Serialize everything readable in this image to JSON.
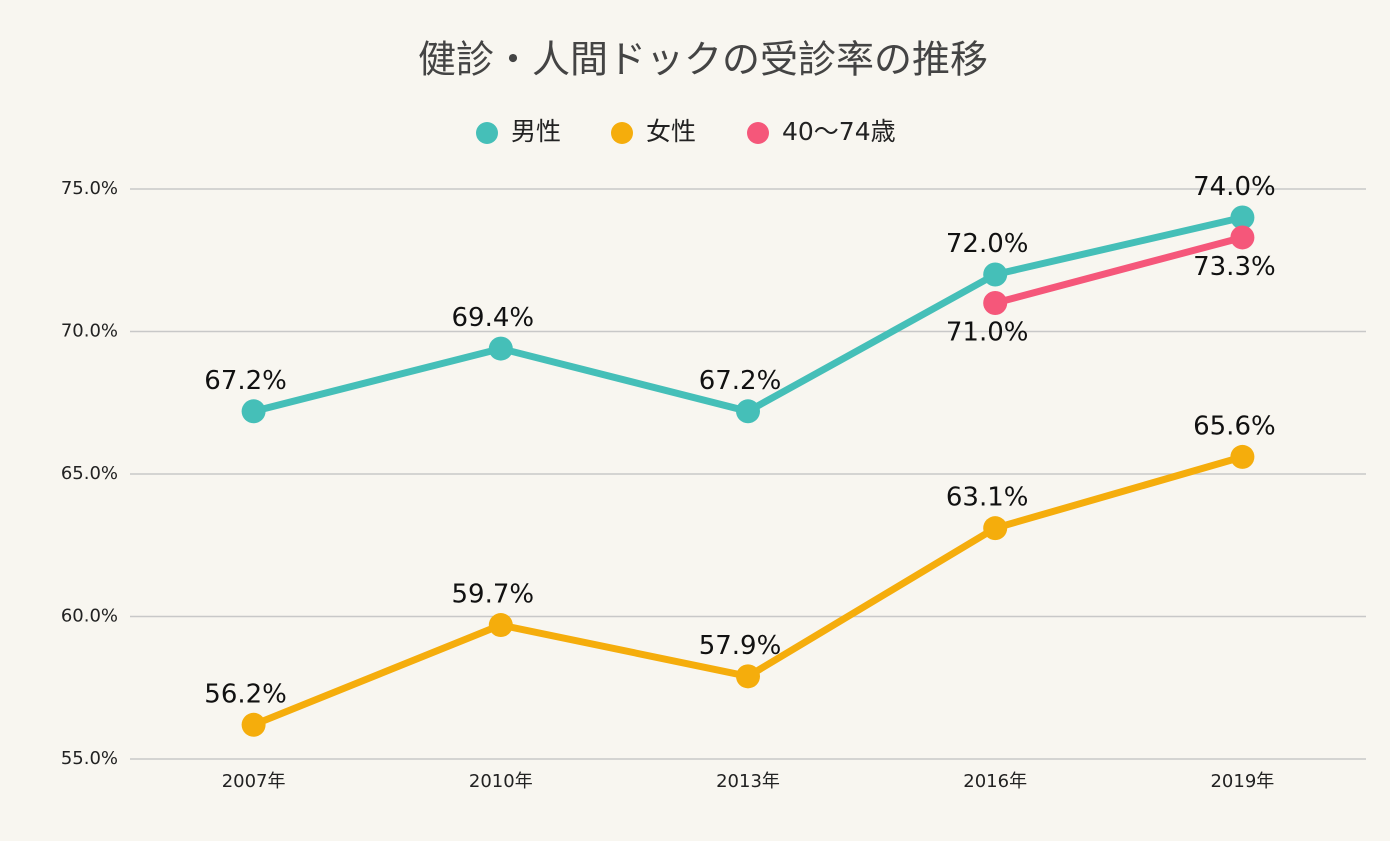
{
  "chart_data": {
    "type": "line",
    "title": "健診・人間ドックの受診率の推移",
    "categories": [
      "2007年",
      "2010年",
      "2013年",
      "2016年",
      "2019年"
    ],
    "series": [
      {
        "name": "男性",
        "color": "#45bfb8",
        "values": [
          67.2,
          69.4,
          67.2,
          72.0,
          74.0
        ],
        "value_labels": [
          "67.2%",
          "69.4%",
          "67.2%",
          "72.0%",
          "74.0%"
        ]
      },
      {
        "name": "女性",
        "color": "#f5ad0c",
        "values": [
          56.2,
          59.7,
          57.9,
          63.1,
          65.6
        ],
        "value_labels": [
          "56.2%",
          "59.7%",
          "57.9%",
          "63.1%",
          "65.6%"
        ]
      },
      {
        "name": "40〜74歳",
        "color": "#f5577a",
        "values": [
          null,
          null,
          null,
          71.0,
          73.3
        ],
        "value_labels": [
          null,
          null,
          null,
          "71.0%",
          "73.3%"
        ]
      }
    ],
    "ylim": [
      55,
      76
    ],
    "yticks": [
      {
        "value": 55,
        "label": "55.0%"
      },
      {
        "value": 60,
        "label": "60.0%"
      },
      {
        "value": 65,
        "label": "65.0%"
      },
      {
        "value": 70,
        "label": "70.0%"
      },
      {
        "value": 75,
        "label": "75.0%"
      }
    ],
    "grid": true,
    "legend": "top"
  }
}
